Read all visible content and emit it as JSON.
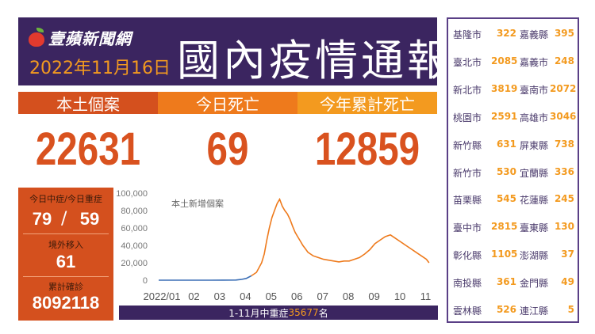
{
  "header": {
    "logo_text": "壹蘋新聞網",
    "date": "2022年11月16日",
    "title": "國內疫情通報"
  },
  "stats": [
    {
      "label": "本土個案",
      "value": "22631"
    },
    {
      "label": "今日死亡",
      "value": "69"
    },
    {
      "label": "今年累計死亡",
      "value": "12859"
    }
  ],
  "left_box": {
    "severe_label": "今日中症/今日重症",
    "moderate": "79",
    "slash": "/",
    "severe": "59",
    "imported_label": "境外移入",
    "imported": "61",
    "total_label": "累計確診",
    "total": "8092118"
  },
  "footer": {
    "prefix": "1-11月中重症",
    "count": "35677",
    "suffix": "名"
  },
  "cities": [
    {
      "n1": "基隆市",
      "v1": "322",
      "n2": "嘉義縣",
      "v2": "395"
    },
    {
      "n1": "臺北市",
      "v1": "2085",
      "n2": "嘉義市",
      "v2": "248"
    },
    {
      "n1": "新北市",
      "v1": "3819",
      "n2": "臺南市",
      "v2": "2072"
    },
    {
      "n1": "桃園市",
      "v1": "2591",
      "n2": "高雄市",
      "v2": "3046"
    },
    {
      "n1": "新竹縣",
      "v1": "631",
      "n2": "屏東縣",
      "v2": "738"
    },
    {
      "n1": "新竹市",
      "v1": "530",
      "n2": "宜蘭縣",
      "v2": "336"
    },
    {
      "n1": "苗栗縣",
      "v1": "545",
      "n2": "花蓮縣",
      "v2": "245"
    },
    {
      "n1": "臺中市",
      "v1": "2815",
      "n2": "臺東縣",
      "v2": "130"
    },
    {
      "n1": "彰化縣",
      "v1": "1105",
      "n2": "澎湖縣",
      "v2": "37"
    },
    {
      "n1": "南投縣",
      "v1": "361",
      "n2": "金門縣",
      "v2": "49"
    },
    {
      "n1": "雲林縣",
      "v1": "526",
      "n2": "連江縣",
      "v2": "5"
    }
  ],
  "colors": {
    "purple": "#3b2560",
    "orange_dark": "#d4501e",
    "orange": "#ee7a1c",
    "orange_light": "#f39a1f",
    "line_blue": "#3b6fb6"
  },
  "chart_data": {
    "type": "line",
    "series_label": "本土新增個案",
    "ylim": [
      0,
      100000
    ],
    "y_ticks": [
      "0",
      "20,000",
      "40,000",
      "60,000",
      "80,000",
      "100,000"
    ],
    "x_ticks": [
      "2022/01",
      "02",
      "03",
      "04",
      "05",
      "06",
      "07",
      "08",
      "09",
      "10",
      "11"
    ],
    "x_month_start": [
      1,
      2,
      3,
      4,
      5,
      6,
      7,
      8,
      9,
      10,
      11
    ],
    "x": [
      1.0,
      1.5,
      2.0,
      2.5,
      3.0,
      3.5,
      4.0,
      4.2,
      4.4,
      4.6,
      4.8,
      5.0,
      5.1,
      5.2,
      5.3,
      5.4,
      5.5,
      5.6,
      5.7,
      5.8,
      5.9,
      6.0,
      6.1,
      6.2,
      6.3,
      6.4,
      6.5,
      6.6,
      6.7,
      6.8,
      6.9,
      7.0,
      7.2,
      7.4,
      7.6,
      7.8,
      8.0,
      8.2,
      8.4,
      8.6,
      8.8,
      9.0,
      9.2,
      9.4,
      9.6,
      9.8,
      10.0,
      10.2,
      10.4,
      10.6,
      10.8,
      11.0,
      11.2,
      11.4,
      11.5
    ],
    "y": [
      0,
      0,
      0,
      0,
      0,
      50,
      200,
      800,
      2000,
      5000,
      9000,
      20000,
      30000,
      46000,
      60000,
      72000,
      80000,
      88000,
      93000,
      85000,
      80000,
      76000,
      70000,
      62000,
      55000,
      50000,
      45000,
      40000,
      36000,
      32000,
      30000,
      28000,
      26000,
      24000,
      23000,
      22000,
      21000,
      22000,
      22000,
      24000,
      26000,
      30000,
      35000,
      42000,
      46000,
      50000,
      52000,
      48000,
      44000,
      40000,
      36000,
      32000,
      28000,
      24000,
      20000
    ],
    "blue_until_x": 4.6,
    "colors": {
      "early": "#3b6fb6",
      "main": "#ee7a1c"
    }
  }
}
